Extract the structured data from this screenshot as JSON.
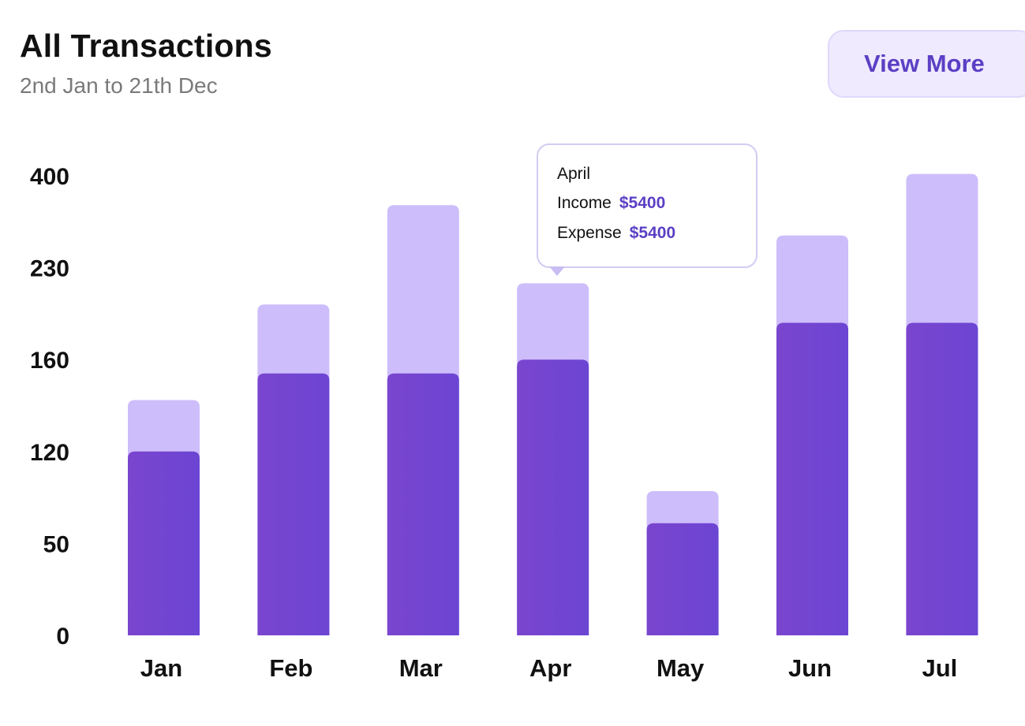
{
  "header": {
    "title": "All Transactions",
    "subtitle": "2nd Jan to 21th Dec",
    "view_more_label": "View More"
  },
  "tooltip": {
    "month": "April",
    "income_label": "Income",
    "income_value": "$5400",
    "expense_label": "Expense",
    "expense_value": "$5400"
  },
  "colors": {
    "income_bar": "#7a45cf",
    "income_bar_end": "#6c45d3",
    "expense_bar": "#cdbdfb",
    "accent": "#5b3fc4"
  },
  "chart_data": {
    "type": "bar",
    "title": "All Transactions",
    "subtitle": "2nd Jan to 21th Dec",
    "categories": [
      "Jan",
      "Feb",
      "Mar",
      "Apr",
      "May",
      "Jun",
      "Jul"
    ],
    "y_ticks": [
      "0",
      "50",
      "120",
      "160",
      "230",
      "400"
    ],
    "tick_scale_note": "ticks are equally spaced (non-linear labels); values below expressed in tick-step units from 0 to 5",
    "series": [
      {
        "name": "Income",
        "values": [
          2.0,
          2.85,
          2.85,
          3.0,
          1.22,
          3.4,
          3.4
        ]
      },
      {
        "name": "Expense",
        "values": [
          2.56,
          3.6,
          4.68,
          3.83,
          1.57,
          4.35,
          5.02
        ]
      }
    ],
    "stacking": "overlay",
    "legend": "none",
    "grid": false
  }
}
